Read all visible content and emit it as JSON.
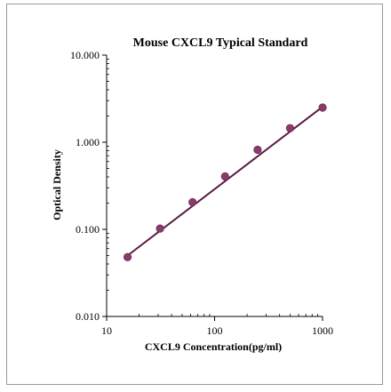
{
  "chart_data": {
    "type": "scatter",
    "title": "Mouse CXCL9 Typical Standard",
    "xlabel": "CXCL9 Concentration(pg/ml)",
    "ylabel": "Optical Density",
    "x_scale": "log",
    "y_scale": "log",
    "xlim": [
      10,
      1000
    ],
    "ylim": [
      0.01,
      10
    ],
    "x_ticks": [
      10,
      100,
      1000
    ],
    "x_tick_labels": [
      "10",
      "100",
      "1000"
    ],
    "y_ticks": [
      0.01,
      0.1,
      1,
      10
    ],
    "y_tick_labels": [
      "0.010",
      "0.100",
      "1.000",
      "10.000"
    ],
    "grid": false,
    "legend": "none",
    "marker_color": "#8b3a6b",
    "line_color": "#5a1a40",
    "series": [
      {
        "x": [
          15.63,
          31.25,
          62.5,
          125,
          250,
          500,
          1000
        ],
        "y": [
          0.048,
          0.102,
          0.205,
          0.405,
          0.82,
          1.45,
          2.5
        ]
      }
    ],
    "trendline": {
      "x": [
        15.63,
        1000
      ],
      "y": [
        0.05,
        2.55
      ]
    }
  }
}
